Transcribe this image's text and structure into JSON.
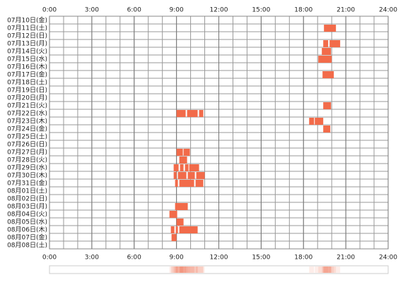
{
  "chart_data": {
    "type": "timeline",
    "color": "#f26b4a",
    "grid": true,
    "minor_step": 1,
    "xlim": [
      0,
      24
    ],
    "xticks": [
      {
        "value": 0,
        "label": "0:00"
      },
      {
        "value": 3,
        "label": "3:00"
      },
      {
        "value": 6,
        "label": "6:00"
      },
      {
        "value": 9,
        "label": "9:00"
      },
      {
        "value": 12,
        "label": "12:00"
      },
      {
        "value": 15,
        "label": "15:00"
      },
      {
        "value": 18,
        "label": "18:00"
      },
      {
        "value": 21,
        "label": "21:00"
      },
      {
        "value": 24,
        "label": "24:00"
      }
    ],
    "rows": [
      {
        "label": "07月10日(金)",
        "segments": []
      },
      {
        "label": "07月11日(土)",
        "segments": [
          [
            19.45,
            20.3
          ]
        ]
      },
      {
        "label": "07月12日(日)",
        "segments": []
      },
      {
        "label": "07月13日(月)",
        "segments": [
          [
            19.4,
            19.75
          ],
          [
            19.85,
            20.6
          ]
        ]
      },
      {
        "label": "07月14日(火)",
        "segments": [
          [
            19.3,
            19.95
          ]
        ]
      },
      {
        "label": "07月15日(水)",
        "segments": [
          [
            19.05,
            20.0
          ]
        ]
      },
      {
        "label": "07月16日(木)",
        "segments": []
      },
      {
        "label": "07月17日(金)",
        "segments": [
          [
            19.35,
            20.15
          ]
        ]
      },
      {
        "label": "07月18日(土)",
        "segments": []
      },
      {
        "label": "07月19日(日)",
        "segments": []
      },
      {
        "label": "07月20日(月)",
        "segments": []
      },
      {
        "label": "07月21日(火)",
        "segments": [
          [
            19.4,
            19.95
          ]
        ]
      },
      {
        "label": "07月22日(水)",
        "segments": [
          [
            9.0,
            9.65
          ],
          [
            9.75,
            10.5
          ],
          [
            10.6,
            10.9
          ]
        ]
      },
      {
        "label": "07月23日(木)",
        "segments": [
          [
            18.4,
            18.75
          ],
          [
            18.8,
            19.4
          ]
        ]
      },
      {
        "label": "07月24日(金)",
        "segments": [
          [
            19.4,
            19.9
          ]
        ]
      },
      {
        "label": "07月25日(土)",
        "segments": []
      },
      {
        "label": "07月26日(日)",
        "segments": []
      },
      {
        "label": "07月27日(月)",
        "segments": [
          [
            9.0,
            9.45
          ],
          [
            9.5,
            9.95
          ]
        ]
      },
      {
        "label": "07月28日(火)",
        "segments": [
          [
            9.2,
            9.75
          ]
        ]
      },
      {
        "label": "07月29日(水)",
        "segments": [
          [
            8.8,
            9.15
          ],
          [
            9.25,
            9.5
          ],
          [
            9.6,
            9.85
          ],
          [
            9.9,
            10.6
          ]
        ]
      },
      {
        "label": "07月30日(木)",
        "segments": [
          [
            8.8,
            9.0
          ],
          [
            9.1,
            9.7
          ],
          [
            9.8,
            10.3
          ],
          [
            10.4,
            11.0
          ]
        ]
      },
      {
        "label": "07月31日(金)",
        "segments": [
          [
            8.9,
            9.1
          ],
          [
            9.2,
            10.25
          ],
          [
            10.35,
            10.9
          ]
        ]
      },
      {
        "label": "08月01日(土)",
        "segments": []
      },
      {
        "label": "08月02日(日)",
        "segments": []
      },
      {
        "label": "08月03日(月)",
        "segments": [
          [
            8.9,
            9.8
          ]
        ]
      },
      {
        "label": "08月04日(火)",
        "segments": [
          [
            8.5,
            9.05
          ]
        ]
      },
      {
        "label": "08月05日(水)",
        "segments": [
          [
            9.0,
            9.5
          ]
        ]
      },
      {
        "label": "08月06日(木)",
        "segments": [
          [
            8.6,
            8.85
          ],
          [
            8.95,
            9.1
          ],
          [
            9.2,
            10.5
          ]
        ]
      },
      {
        "label": "08月07日(金)",
        "segments": [
          [
            8.65,
            9.0
          ]
        ]
      },
      {
        "label": "08月08日(土)",
        "segments": []
      }
    ]
  }
}
